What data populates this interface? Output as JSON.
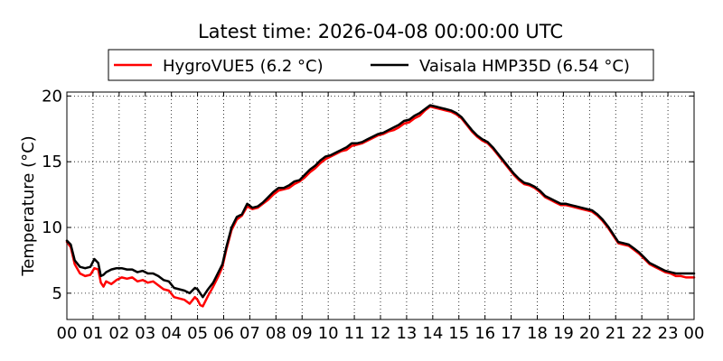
{
  "chart_data": {
    "type": "line",
    "title": "Latest time: 2026-04-08 00:00:00 UTC",
    "xlabel": "",
    "ylabel": "Temperature (°C)",
    "xlim": [
      0,
      24
    ],
    "ylim": [
      3,
      20.3
    ],
    "x_ticks": [
      0,
      1,
      2,
      3,
      4,
      5,
      6,
      7,
      8,
      9,
      10,
      11,
      12,
      13,
      14,
      15,
      16,
      17,
      18,
      19,
      20,
      21,
      22,
      23,
      24
    ],
    "x_tick_labels": [
      "00",
      "01",
      "02",
      "03",
      "04",
      "05",
      "06",
      "07",
      "08",
      "09",
      "10",
      "11",
      "12",
      "13",
      "14",
      "15",
      "16",
      "17",
      "18",
      "19",
      "20",
      "21",
      "22",
      "23",
      "00"
    ],
    "y_ticks": [
      5,
      10,
      15,
      20
    ],
    "y_tick_labels": [
      "5",
      "10",
      "15",
      "20"
    ],
    "grid": true,
    "legend_position": "top-center, above plot, two columns",
    "series": [
      {
        "name": "HygroVUE5 (6.2 °C)",
        "color": "#ff0000",
        "x": [
          0,
          0.15,
          0.3,
          0.5,
          0.7,
          0.9,
          1.05,
          1.2,
          1.3,
          1.4,
          1.5,
          1.7,
          1.9,
          2.1,
          2.3,
          2.5,
          2.7,
          2.9,
          3.1,
          3.3,
          3.5,
          3.7,
          3.9,
          4.1,
          4.3,
          4.5,
          4.7,
          4.9,
          5.0,
          5.1,
          5.2,
          5.4,
          5.6,
          5.8,
          5.95,
          6.1,
          6.3,
          6.5,
          6.7,
          6.9,
          7.1,
          7.3,
          7.5,
          7.7,
          7.9,
          8.1,
          8.3,
          8.5,
          8.7,
          8.9,
          9.1,
          9.3,
          9.5,
          9.7,
          9.9,
          10.1,
          10.3,
          10.5,
          10.7,
          10.9,
          11.1,
          11.3,
          11.5,
          11.7,
          11.9,
          12.1,
          12.3,
          12.5,
          12.7,
          12.9,
          13.1,
          13.3,
          13.5,
          13.7,
          13.9,
          14.1,
          14.3,
          14.5,
          14.7,
          14.9,
          15.1,
          15.3,
          15.5,
          15.7,
          15.9,
          16.1,
          16.3,
          16.5,
          16.7,
          16.9,
          17.1,
          17.3,
          17.5,
          17.7,
          17.9,
          18.1,
          18.3,
          18.5,
          18.7,
          18.9,
          19.1,
          19.3,
          19.5,
          19.7,
          19.9,
          20.1,
          20.3,
          20.5,
          20.7,
          20.9,
          21.1,
          21.3,
          21.5,
          21.7,
          21.9,
          22.1,
          22.3,
          22.5,
          22.7,
          22.9,
          23.1,
          23.3,
          23.5,
          23.7,
          23.9,
          24
        ],
        "y": [
          8.9,
          8.5,
          7.2,
          6.5,
          6.3,
          6.4,
          6.9,
          6.8,
          5.8,
          5.5,
          5.9,
          5.7,
          6.0,
          6.2,
          6.1,
          6.2,
          5.9,
          6.0,
          5.8,
          5.9,
          5.6,
          5.3,
          5.2,
          4.7,
          4.6,
          4.5,
          4.2,
          4.7,
          4.5,
          4.1,
          4.0,
          4.8,
          5.5,
          6.3,
          7.0,
          8.3,
          9.8,
          10.6,
          10.9,
          11.6,
          11.4,
          11.5,
          11.8,
          12.1,
          12.5,
          12.8,
          12.9,
          13.0,
          13.3,
          13.5,
          13.8,
          14.2,
          14.5,
          14.9,
          15.2,
          15.4,
          15.6,
          15.8,
          15.9,
          16.2,
          16.3,
          16.4,
          16.6,
          16.8,
          17.0,
          17.1,
          17.3,
          17.4,
          17.6,
          17.9,
          18.0,
          18.3,
          18.5,
          18.9,
          19.2,
          19.1,
          19.0,
          18.9,
          18.8,
          18.6,
          18.3,
          17.8,
          17.3,
          16.9,
          16.6,
          16.4,
          16.0,
          15.5,
          15.0,
          14.5,
          14.0,
          13.6,
          13.3,
          13.2,
          13.0,
          12.7,
          12.3,
          12.1,
          11.9,
          11.7,
          11.7,
          11.6,
          11.5,
          11.4,
          11.3,
          11.2,
          10.9,
          10.5,
          10.0,
          9.4,
          8.8,
          8.7,
          8.6,
          8.3,
          8.0,
          7.6,
          7.2,
          7.0,
          6.8,
          6.6,
          6.5,
          6.3,
          6.3,
          6.2,
          6.2,
          6.2
        ],
        "line_width": 2.5
      },
      {
        "name": "Vaisala HMP35D (6.54 °C)",
        "color": "#000000",
        "x": [
          0,
          0.15,
          0.3,
          0.5,
          0.7,
          0.9,
          1.05,
          1.2,
          1.3,
          1.4,
          1.5,
          1.7,
          1.9,
          2.1,
          2.3,
          2.5,
          2.7,
          2.9,
          3.1,
          3.3,
          3.5,
          3.7,
          3.9,
          4.1,
          4.3,
          4.5,
          4.7,
          4.9,
          5.0,
          5.1,
          5.2,
          5.4,
          5.6,
          5.8,
          5.95,
          6.1,
          6.3,
          6.5,
          6.7,
          6.9,
          7.1,
          7.3,
          7.5,
          7.7,
          7.9,
          8.1,
          8.3,
          8.5,
          8.7,
          8.9,
          9.1,
          9.3,
          9.5,
          9.7,
          9.9,
          10.1,
          10.3,
          10.5,
          10.7,
          10.9,
          11.1,
          11.3,
          11.5,
          11.7,
          11.9,
          12.1,
          12.3,
          12.5,
          12.7,
          12.9,
          13.1,
          13.3,
          13.5,
          13.7,
          13.9,
          14.1,
          14.3,
          14.5,
          14.7,
          14.9,
          15.1,
          15.3,
          15.5,
          15.7,
          15.9,
          16.1,
          16.3,
          16.5,
          16.7,
          16.9,
          17.1,
          17.3,
          17.5,
          17.7,
          17.9,
          18.1,
          18.3,
          18.5,
          18.7,
          18.9,
          19.1,
          19.3,
          19.5,
          19.7,
          19.9,
          20.1,
          20.3,
          20.5,
          20.7,
          20.9,
          21.1,
          21.3,
          21.5,
          21.7,
          21.9,
          22.1,
          22.3,
          22.5,
          22.7,
          22.9,
          23.1,
          23.3,
          23.5,
          23.7,
          23.9,
          24
        ],
        "y": [
          9.0,
          8.7,
          7.5,
          7.0,
          6.9,
          7.0,
          7.6,
          7.3,
          6.3,
          6.4,
          6.6,
          6.8,
          6.9,
          6.9,
          6.8,
          6.8,
          6.6,
          6.7,
          6.5,
          6.5,
          6.3,
          6.0,
          5.9,
          5.4,
          5.3,
          5.2,
          5.0,
          5.4,
          5.3,
          5.0,
          4.7,
          5.3,
          5.8,
          6.6,
          7.2,
          8.5,
          10.0,
          10.8,
          11.0,
          11.8,
          11.5,
          11.6,
          11.9,
          12.3,
          12.7,
          13.0,
          13.0,
          13.2,
          13.5,
          13.6,
          14.0,
          14.4,
          14.7,
          15.1,
          15.4,
          15.5,
          15.7,
          15.9,
          16.1,
          16.4,
          16.4,
          16.5,
          16.7,
          16.9,
          17.1,
          17.2,
          17.4,
          17.6,
          17.8,
          18.1,
          18.2,
          18.5,
          18.7,
          19.0,
          19.3,
          19.2,
          19.1,
          19.0,
          18.9,
          18.7,
          18.4,
          17.9,
          17.4,
          17.0,
          16.7,
          16.5,
          16.1,
          15.6,
          15.1,
          14.6,
          14.1,
          13.7,
          13.4,
          13.3,
          13.1,
          12.8,
          12.4,
          12.2,
          12.0,
          11.8,
          11.8,
          11.7,
          11.6,
          11.5,
          11.4,
          11.3,
          11.0,
          10.6,
          10.1,
          9.5,
          8.9,
          8.8,
          8.7,
          8.4,
          8.1,
          7.7,
          7.3,
          7.1,
          6.9,
          6.7,
          6.6,
          6.5,
          6.5,
          6.5,
          6.5,
          6.5
        ],
        "line_width": 2.5
      }
    ]
  }
}
